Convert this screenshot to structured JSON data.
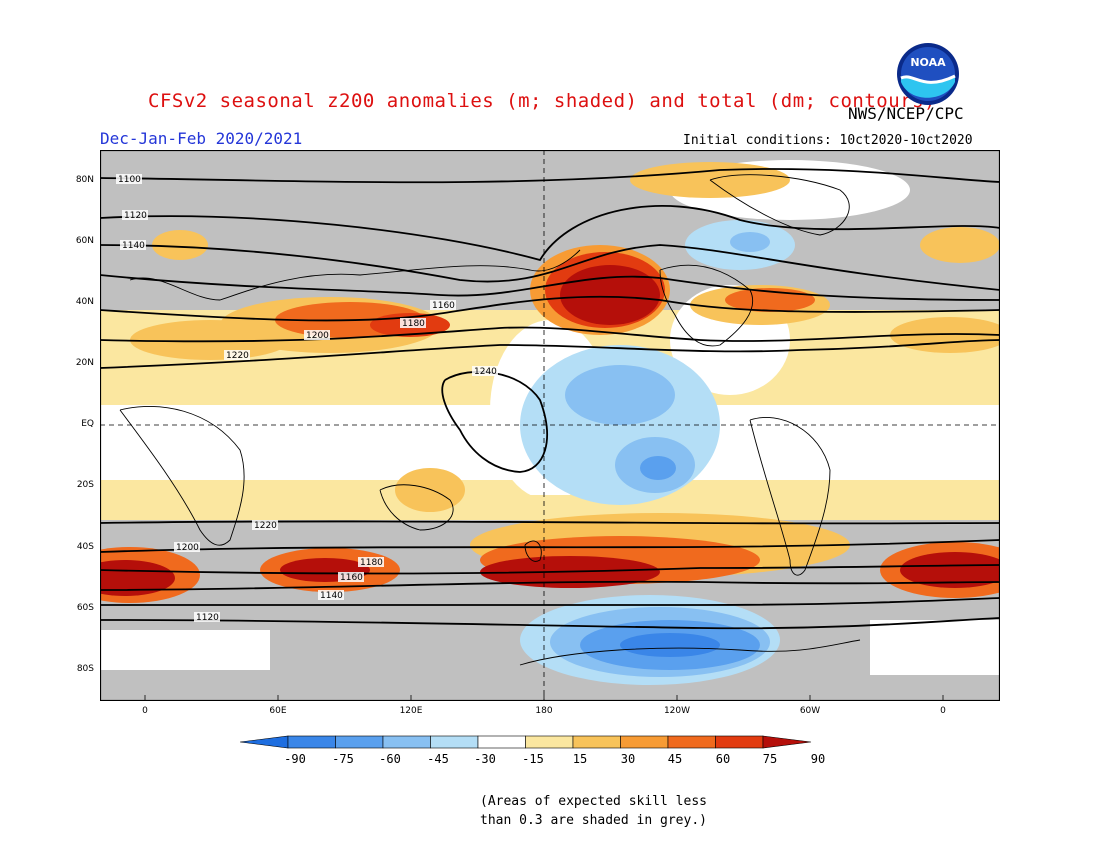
{
  "header": {
    "title": "CFSv2 seasonal z200 anomalies (m; shaded) and total (dm; contours)",
    "agency": "NWS/NCEP/CPC",
    "season": "Dec-Jan-Feb 2020/2021",
    "initial_conditions": "Initial conditions: 10ct2020-10ct2020",
    "logo_text": "NOAA"
  },
  "axes": {
    "lat_labels": [
      "80N",
      "60N",
      "40N",
      "20N",
      "EQ",
      "20S",
      "40S",
      "60S",
      "80S"
    ],
    "lon_labels": [
      "0",
      "60E",
      "120E",
      "180",
      "120W",
      "60W",
      "0"
    ]
  },
  "contours": {
    "labels": [
      "1100",
      "1120",
      "1140",
      "1160",
      "1180",
      "1200",
      "1220",
      "1240"
    ]
  },
  "colorbar": {
    "labels": [
      "-90",
      "-75",
      "-60",
      "-45",
      "-30",
      "-15",
      "15",
      "30",
      "45",
      "60",
      "75",
      "90"
    ],
    "colors": [
      "#1e6ee0",
      "#3a86e8",
      "#5aa0ee",
      "#88c0f2",
      "#b4def6",
      "#ffffff",
      "#fbe7a0",
      "#f8c35a",
      "#f79b34",
      "#f06a1e",
      "#e23b10",
      "#b50f0a"
    ],
    "skill_grey": "#c0c0c0"
  },
  "note": {
    "line1": "(Areas of expected skill less",
    "line2": "than 0.3 are shaded in grey.)"
  }
}
